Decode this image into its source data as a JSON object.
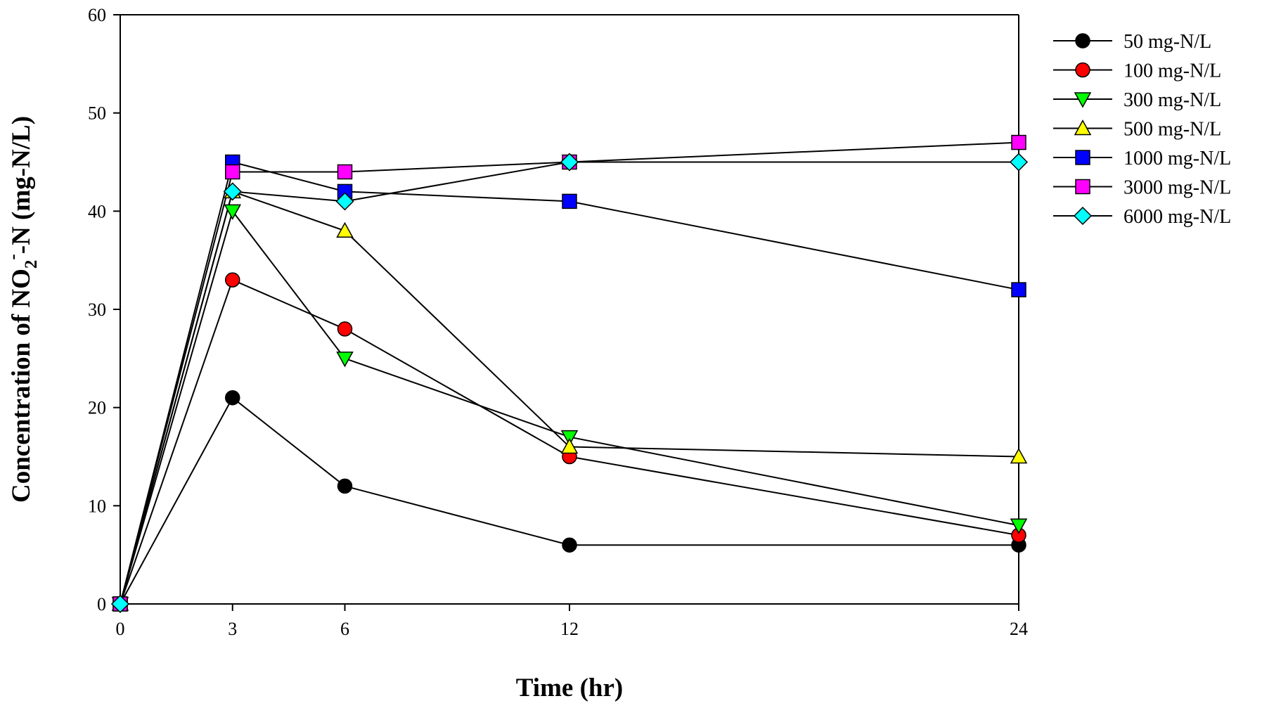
{
  "chart_data": {
    "type": "line",
    "title": "",
    "xlabel": "Time (hr)",
    "ylabel": {
      "prefix": "Concentration of NO",
      "subscript": "2",
      "superscript": "-",
      "suffix": "-N (mg-N/L)"
    },
    "x": [
      0,
      3,
      6,
      12,
      24
    ],
    "xticks": [
      0,
      3,
      6,
      12,
      24
    ],
    "xlim": [
      0,
      24
    ],
    "yticks": [
      0,
      10,
      20,
      30,
      40,
      50,
      60
    ],
    "ylim": [
      0,
      60
    ],
    "grid": false,
    "legend_position": "top-right, outside plot",
    "series": [
      {
        "name": "50 mg-N/L",
        "marker": "circle",
        "color": "#000000",
        "values": [
          0,
          21,
          12,
          6,
          6
        ]
      },
      {
        "name": "100 mg-N/L",
        "marker": "circle",
        "color": "#ff0000",
        "values": [
          0,
          33,
          28,
          15,
          7
        ]
      },
      {
        "name": "300 mg-N/L",
        "marker": "triangle-down",
        "color": "#00ff00",
        "values": [
          0,
          40,
          25,
          17,
          8
        ]
      },
      {
        "name": "500 mg-N/L",
        "marker": "triangle-up",
        "color": "#ffff00",
        "values": [
          0,
          42,
          38,
          16,
          15
        ]
      },
      {
        "name": "1000 mg-N/L",
        "marker": "square",
        "color": "#0000ff",
        "values": [
          0,
          45,
          42,
          41,
          32
        ]
      },
      {
        "name": "3000 mg-N/L",
        "marker": "square",
        "color": "#ff00ff",
        "values": [
          0,
          44,
          44,
          45,
          47
        ]
      },
      {
        "name": "6000 mg-N/L",
        "marker": "diamond",
        "color": "#00ffff",
        "values": [
          0,
          42,
          41,
          45,
          45
        ]
      }
    ]
  }
}
